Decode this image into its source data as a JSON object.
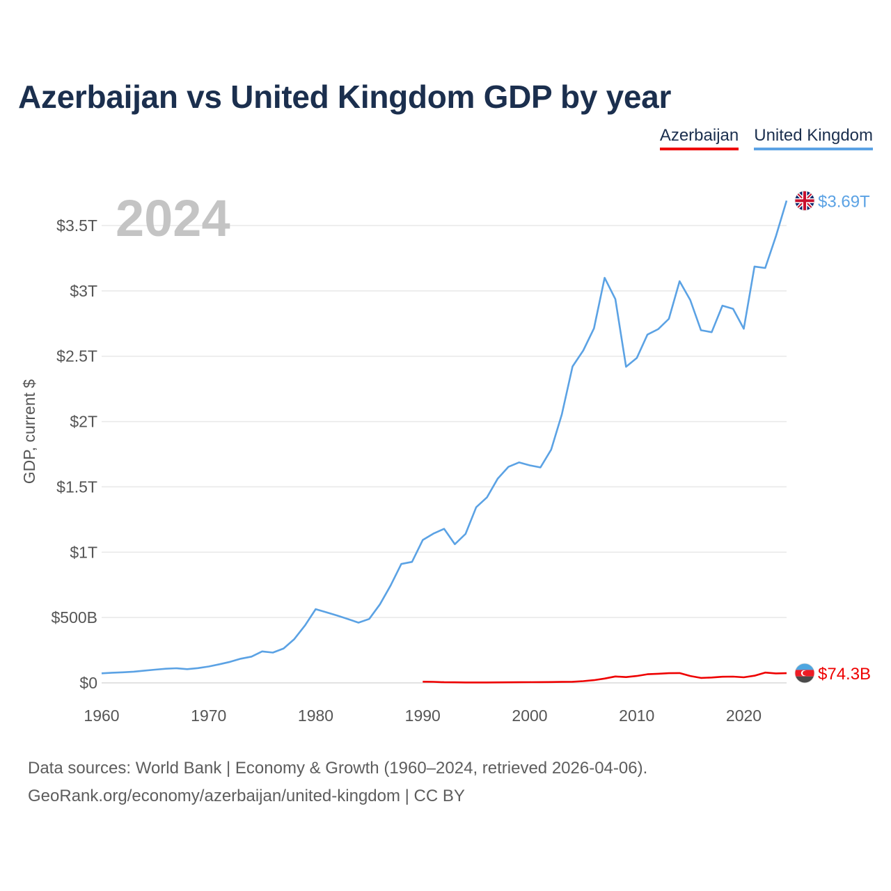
{
  "chart_data": {
    "type": "line",
    "title": "Azerbaijan vs United Kingdom GDP by year",
    "ylabel": "GDP, current $",
    "xlabel": "",
    "year_watermark": "2024",
    "xlim": [
      1960,
      2024
    ],
    "ylim": [
      0,
      3800000000000
    ],
    "x_ticks": [
      {
        "value": 1960,
        "label": "1960"
      },
      {
        "value": 1970,
        "label": "1970"
      },
      {
        "value": 1980,
        "label": "1980"
      },
      {
        "value": 1990,
        "label": "1990"
      },
      {
        "value": 2000,
        "label": "2000"
      },
      {
        "value": 2010,
        "label": "2010"
      },
      {
        "value": 2020,
        "label": "2020"
      }
    ],
    "y_ticks": [
      {
        "value": 0,
        "label": "$0"
      },
      {
        "value": 500000000000,
        "label": "$500B"
      },
      {
        "value": 1000000000000,
        "label": "$1T"
      },
      {
        "value": 1500000000000,
        "label": "$1.5T"
      },
      {
        "value": 2000000000000,
        "label": "$2T"
      },
      {
        "value": 2500000000000,
        "label": "$2.5T"
      },
      {
        "value": 3000000000000,
        "label": "$3T"
      },
      {
        "value": 3500000000000,
        "label": "$3.5T"
      }
    ],
    "series": [
      {
        "name": "Azerbaijan",
        "color": "#ee0000",
        "end_label": "$74.3B",
        "flag_icon": "azerbaijan-flag-icon",
        "x": [
          1990,
          1991,
          1992,
          1993,
          1994,
          1995,
          1996,
          1997,
          1998,
          1999,
          2000,
          2001,
          2002,
          2003,
          2004,
          2005,
          2006,
          2007,
          2008,
          2009,
          2010,
          2011,
          2012,
          2013,
          2014,
          2015,
          2016,
          2017,
          2018,
          2019,
          2020,
          2021,
          2022,
          2023,
          2024
        ],
        "values": [
          9000000000.0,
          8000000000.0,
          5000000000.0,
          4000000000.0,
          3300000000.0,
          3100000000.0,
          3200000000.0,
          3900000000.0,
          4400000000.0,
          4600000000.0,
          5300000000.0,
          5700000000.0,
          6200000000.0,
          7300000000.0,
          8700000000.0,
          13200000000.0,
          21000000000.0,
          33000000000.0,
          48900000000.0,
          44300000000.0,
          52900000000.0,
          65900000000.0,
          69700000000.0,
          74200000000.0,
          75200000000.0,
          53000000000.0,
          37900000000.0,
          40900000000.0,
          47100000000.0,
          48200000000.0,
          42700000000.0,
          54800000000.0,
          78700000000.0,
          72400000000.0,
          74300000000.0
        ]
      },
      {
        "name": "United Kingdom",
        "color": "#5ba2e4",
        "end_label": "$3.69T",
        "flag_icon": "united-kingdom-flag-icon",
        "x": [
          1960,
          1961,
          1962,
          1963,
          1964,
          1965,
          1966,
          1967,
          1968,
          1969,
          1970,
          1971,
          1972,
          1973,
          1974,
          1975,
          1976,
          1977,
          1978,
          1979,
          1980,
          1981,
          1982,
          1983,
          1984,
          1985,
          1986,
          1987,
          1988,
          1989,
          1990,
          1991,
          1992,
          1993,
          1994,
          1995,
          1996,
          1997,
          1998,
          1999,
          2000,
          2001,
          2002,
          2003,
          2004,
          2005,
          2006,
          2007,
          2008,
          2009,
          2010,
          2011,
          2012,
          2013,
          2014,
          2015,
          2016,
          2017,
          2018,
          2019,
          2020,
          2021,
          2022,
          2023,
          2024
        ],
        "values": [
          73000000000.0,
          78000000000.0,
          81000000000.0,
          86000000000.0,
          94000000000.0,
          101000000000.0,
          108000000000.0,
          112000000000.0,
          105000000000.0,
          113000000000.0,
          125000000000.0,
          142000000000.0,
          161000000000.0,
          185000000000.0,
          201000000000.0,
          241000000000.0,
          232000000000.0,
          263000000000.0,
          335000000000.0,
          439000000000.0,
          564000000000.0,
          540000000000.0,
          515000000000.0,
          489000000000.0,
          461000000000.0,
          489000000000.0,
          601000000000.0,
          745000000000.0,
          910000000000.0,
          926000000000.0,
          1093000000000.0,
          1142000000000.0,
          1179000000000.0,
          1061000000000.0,
          1140000000000.0,
          1344000000000.0,
          1419000000000.0,
          1562000000000.0,
          1653000000000.0,
          1687000000000.0,
          1665000000000.0,
          1649000000000.0,
          1785000000000.0,
          2054000000000.0,
          2421000000000.0,
          2544000000000.0,
          2713000000000.0,
          3100000000000.0,
          2937000000000.0,
          2419000000000.0,
          2486000000000.0,
          2665000000000.0,
          2707000000000.0,
          2786000000000.0,
          3074000000000.0,
          2930000000000.0,
          2699000000000.0,
          2684000000000.0,
          2887000000000.0,
          2863000000000.0,
          2710000000000.0,
          3186000000000.0,
          3175000000000.0,
          3417000000000.0,
          3690000000000.0
        ]
      }
    ]
  },
  "legend": {
    "azerbaijan": "Azerbaijan",
    "united_kingdom": "United Kingdom"
  },
  "source": {
    "line1": "Data sources: World Bank | Economy & Growth (1960–2024, retrieved 2026-04-06).",
    "line2": "GeoRank.org/economy/azerbaijan/united-kingdom | CC BY"
  }
}
